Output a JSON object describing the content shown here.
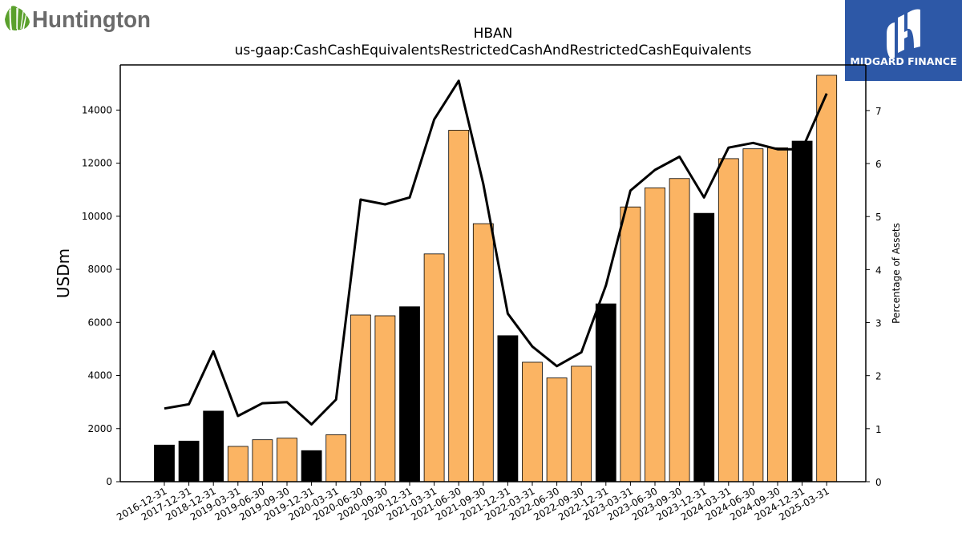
{
  "logos": {
    "left_text": "Huntington",
    "right_text": "MIDGARD FINANCE",
    "right_bg": "#2d58a7"
  },
  "chart_data": {
    "type": "bar",
    "title": "HBAN",
    "subtitle": "us-gaap:CashCashEquivalentsRestrictedCashAndRestrictedCashEquivalents",
    "ylabel": "USDm",
    "y2label": "Percentage of Assets",
    "ylim": [
      0,
      15700
    ],
    "y2lim": [
      0,
      7.86
    ],
    "yticks": [
      0,
      2000,
      4000,
      6000,
      8000,
      10000,
      12000,
      14000
    ],
    "y2ticks": [
      0,
      1,
      2,
      3,
      4,
      5,
      6,
      7
    ],
    "categories": [
      "2016-12-31",
      "2017-12-31",
      "2018-12-31",
      "2019-03-31",
      "2019-06-30",
      "2019-09-30",
      "2019-12-31",
      "2020-03-31",
      "2020-06-30",
      "2020-09-30",
      "2020-12-31",
      "2021-03-31",
      "2021-06-30",
      "2021-09-30",
      "2021-12-31",
      "2022-03-31",
      "2022-06-30",
      "2022-09-30",
      "2022-12-31",
      "2023-03-31",
      "2023-06-30",
      "2023-09-30",
      "2023-12-31",
      "2024-03-31",
      "2024-06-30",
      "2024-09-30",
      "2024-12-31",
      "2025-03-31"
    ],
    "series": [
      {
        "type": "bar",
        "values": [
          1380,
          1530,
          2660,
          1330,
          1580,
          1640,
          1170,
          1770,
          6280,
          6250,
          6590,
          8580,
          13240,
          9720,
          5500,
          4500,
          3910,
          4350,
          6700,
          10350,
          11070,
          11420,
          10110,
          12170,
          12540,
          12580,
          12830,
          15310
        ]
      },
      {
        "type": "line",
        "axis": "right",
        "values": [
          1.38,
          1.46,
          2.46,
          1.24,
          1.48,
          1.5,
          1.08,
          1.55,
          5.32,
          5.23,
          5.36,
          6.83,
          7.56,
          5.62,
          3.17,
          2.55,
          2.18,
          2.44,
          3.7,
          5.49,
          5.88,
          6.13,
          5.36,
          6.3,
          6.39,
          6.27,
          6.27,
          7.32
        ]
      }
    ],
    "bar_colors": {
      "year_end": "#000000",
      "quarter": "#fbb463",
      "edge": "#000000"
    },
    "line_color": "#000000"
  }
}
